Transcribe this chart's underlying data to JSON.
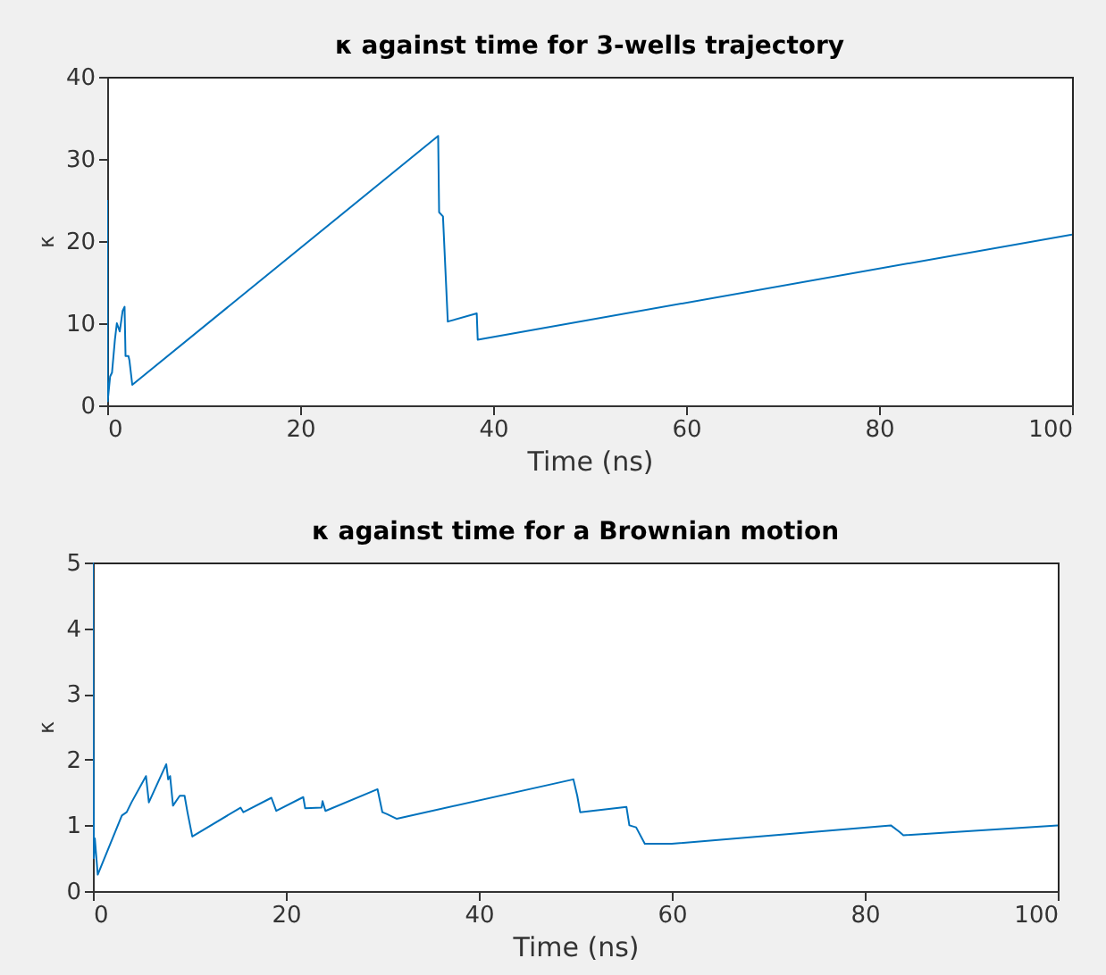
{
  "chart_data": [
    {
      "type": "line",
      "title": "κ against time for 3-wells trajectory",
      "xlabel": "Time (ns)",
      "ylabel": "κ",
      "xlim": [
        0,
        100
      ],
      "ylim": [
        0,
        40
      ],
      "xticks": [
        0,
        20,
        40,
        60,
        80,
        100
      ],
      "yticks": [
        0,
        10,
        20,
        30,
        40
      ],
      "series": [
        {
          "color": "#0072bd",
          "x": [
            0,
            0.05,
            0.3,
            0.5,
            0.8,
            1,
            1.3,
            1.6,
            1.8,
            1.9,
            2.2,
            2.3,
            2.6,
            34.3,
            34.4,
            34.8,
            35.3,
            38.3,
            38.4,
            100
          ],
          "values": [
            25,
            0.5,
            3.5,
            4,
            8,
            10,
            9,
            11.5,
            12,
            6,
            6,
            5.5,
            2.5,
            32.8,
            23.5,
            23,
            10.2,
            11.2,
            8,
            20.8
          ]
        }
      ]
    },
    {
      "type": "line",
      "title": "κ against time for a Brownian motion",
      "xlabel": "Time (ns)",
      "ylabel": "κ",
      "xlim": [
        0,
        100
      ],
      "ylim": [
        0,
        5
      ],
      "xticks": [
        0,
        20,
        40,
        60,
        80,
        100
      ],
      "yticks": [
        0,
        1,
        2,
        3,
        4,
        5
      ],
      "series": [
        {
          "color": "#0072bd",
          "x": [
            0,
            0.1,
            0.2,
            0.5,
            3,
            3.5,
            4,
            5.5,
            5.8,
            7.6,
            7.8,
            8,
            8.3,
            9,
            9.5,
            9.8,
            10.3,
            15.3,
            15.6,
            18.5,
            19,
            21.8,
            22,
            23.7,
            23.8,
            24.1,
            29.5,
            30,
            30.5,
            31.5,
            49.8,
            50.2,
            50.5,
            55.3,
            55.6,
            56.3,
            57.2,
            60,
            82.7,
            83.6,
            84,
            100
          ],
          "values": [
            5,
            0.5,
            0.8,
            0.25,
            1.15,
            1.2,
            1.35,
            1.75,
            1.35,
            1.93,
            1.7,
            1.75,
            1.3,
            1.45,
            1.45,
            1.2,
            0.83,
            1.27,
            1.2,
            1.42,
            1.22,
            1.43,
            1.26,
            1.27,
            1.37,
            1.22,
            1.55,
            1.2,
            1.17,
            1.1,
            1.7,
            1.45,
            1.2,
            1.28,
            1.0,
            0.97,
            0.72,
            0.72,
            1.0,
            0.9,
            0.85,
            1.0
          ]
        }
      ]
    }
  ]
}
